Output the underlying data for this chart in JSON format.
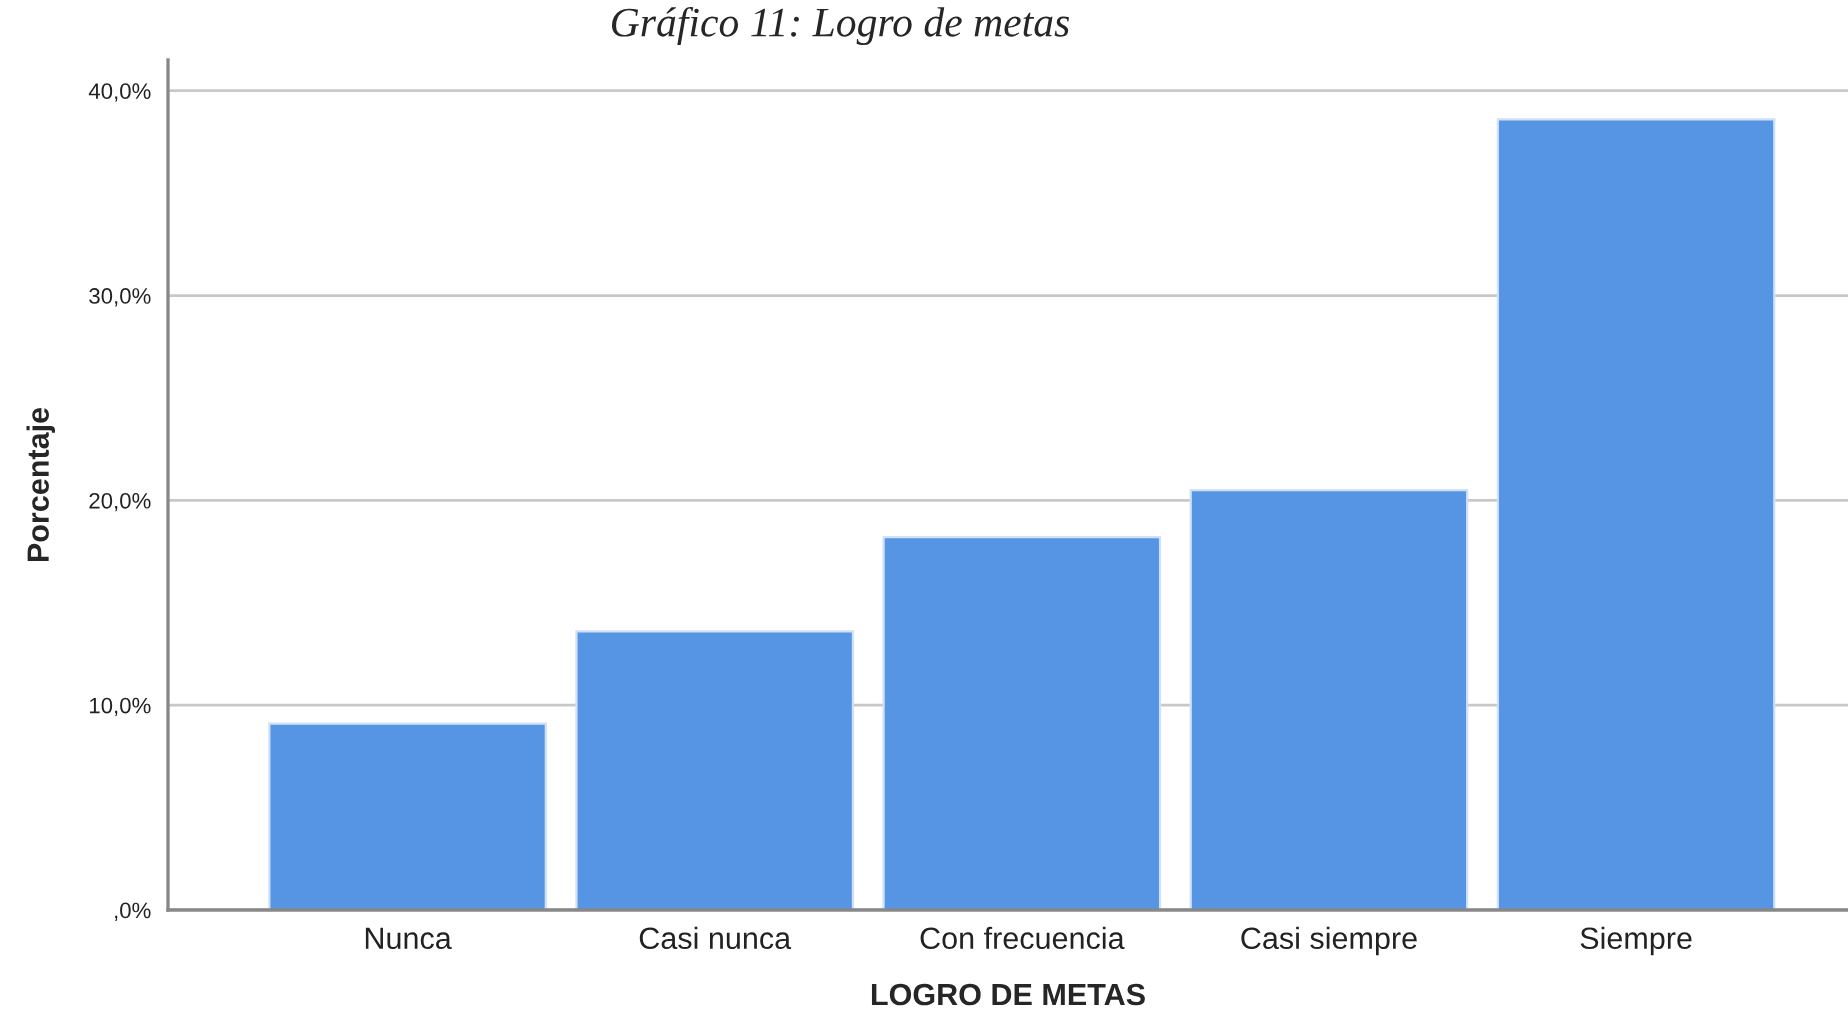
{
  "chart_data": {
    "type": "bar",
    "title": "Gráfico 11: Logro de metas",
    "xlabel": "LOGRO DE METAS",
    "ylabel": "Porcentaje",
    "categories": [
      "Nunca",
      "Casi nunca",
      "Con frecuencia",
      "Casi siempre",
      "Siempre"
    ],
    "values": [
      9.1,
      13.6,
      18.2,
      20.5,
      38.6
    ],
    "color": "#5595e3",
    "ylim": [
      0,
      41.5
    ],
    "yticks": [
      {
        "value": 0,
        "label": ",0%"
      },
      {
        "value": 10,
        "label": "10,0%"
      },
      {
        "value": 20,
        "label": "20,0%"
      },
      {
        "value": 30,
        "label": "30,0%"
      },
      {
        "value": 40,
        "label": "40,0%"
      }
    ],
    "grid": "y"
  }
}
